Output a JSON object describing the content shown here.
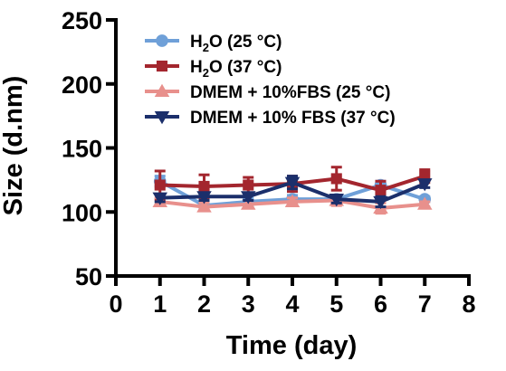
{
  "chart_data": {
    "type": "line",
    "xlabel": "Time (day)",
    "ylabel": "Size (d.nm)",
    "xlim": [
      0,
      8
    ],
    "ylim": [
      50,
      250
    ],
    "xticks": [
      "0",
      "1",
      "2",
      "3",
      "4",
      "5",
      "6",
      "7",
      "8"
    ],
    "yticks": [
      "50",
      "100",
      "150",
      "200",
      "250"
    ],
    "grid": false,
    "legend_position": "top-left",
    "x": [
      1,
      2,
      3,
      4,
      5,
      6,
      7
    ],
    "series": [
      {
        "name": "H₂O (25 °C)",
        "name_parts": [
          "H",
          "2",
          "O (25 °C)"
        ],
        "color": "#6fa0d8",
        "marker": "circle",
        "values": [
          124,
          105,
          108,
          110,
          110,
          121,
          110
        ],
        "errors": [
          4,
          3,
          3,
          3,
          3,
          3,
          2
        ]
      },
      {
        "name": "H₂O (37 °C)",
        "name_parts": [
          "H",
          "2",
          "O (37 °C)"
        ],
        "color": "#a3262e",
        "marker": "square",
        "values": [
          121,
          120,
          121,
          122,
          126,
          117,
          128
        ],
        "errors": [
          11,
          9,
          6,
          6,
          9,
          7,
          5
        ]
      },
      {
        "name": "DMEM + 10%FBS (25 °C)",
        "color": "#e8908c",
        "marker": "triangle-up",
        "values": [
          108,
          104,
          106,
          108,
          109,
          103,
          106
        ],
        "errors": [
          3,
          3,
          3,
          3,
          4,
          4,
          2
        ]
      },
      {
        "name": "DMEM + 10% FBS (37 °C)",
        "color": "#1b2f6b",
        "marker": "triangle-down",
        "values": [
          111,
          112,
          112,
          123,
          110,
          108,
          122
        ],
        "errors": [
          3,
          3,
          3,
          5,
          3,
          4,
          3
        ]
      }
    ]
  }
}
